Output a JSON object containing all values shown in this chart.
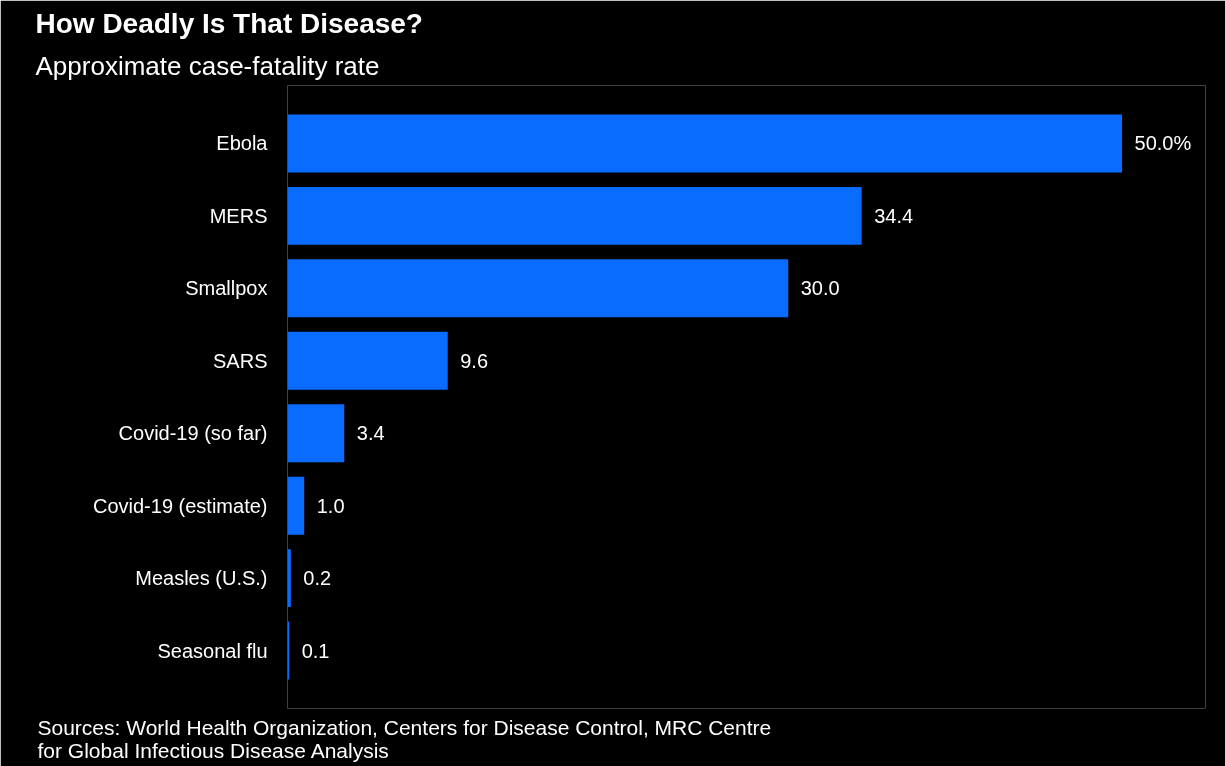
{
  "chart_data": {
    "type": "bar",
    "orientation": "horizontal",
    "title": "How Deadly Is That Disease?",
    "subtitle": "Approximate case-fatality rate",
    "categories": [
      "Ebola",
      "MERS",
      "Smallpox",
      "SARS",
      "Covid-19 (so far)",
      "Covid-19 (estimate)",
      "Measles (U.S.)",
      "Seasonal flu"
    ],
    "values": [
      50.0,
      34.4,
      30.0,
      9.6,
      3.4,
      1.0,
      0.2,
      0.1
    ],
    "value_labels": [
      "50.0%",
      "34.4",
      "30.0",
      "9.6",
      "3.4",
      "1.0",
      "0.2",
      "0.1"
    ],
    "color": "#0a6cff",
    "grid": false,
    "annotations": [
      "Sources: World Health Organization, Centers for Disease Control, MRC Centre for Global Infectious Disease Analysis"
    ]
  }
}
